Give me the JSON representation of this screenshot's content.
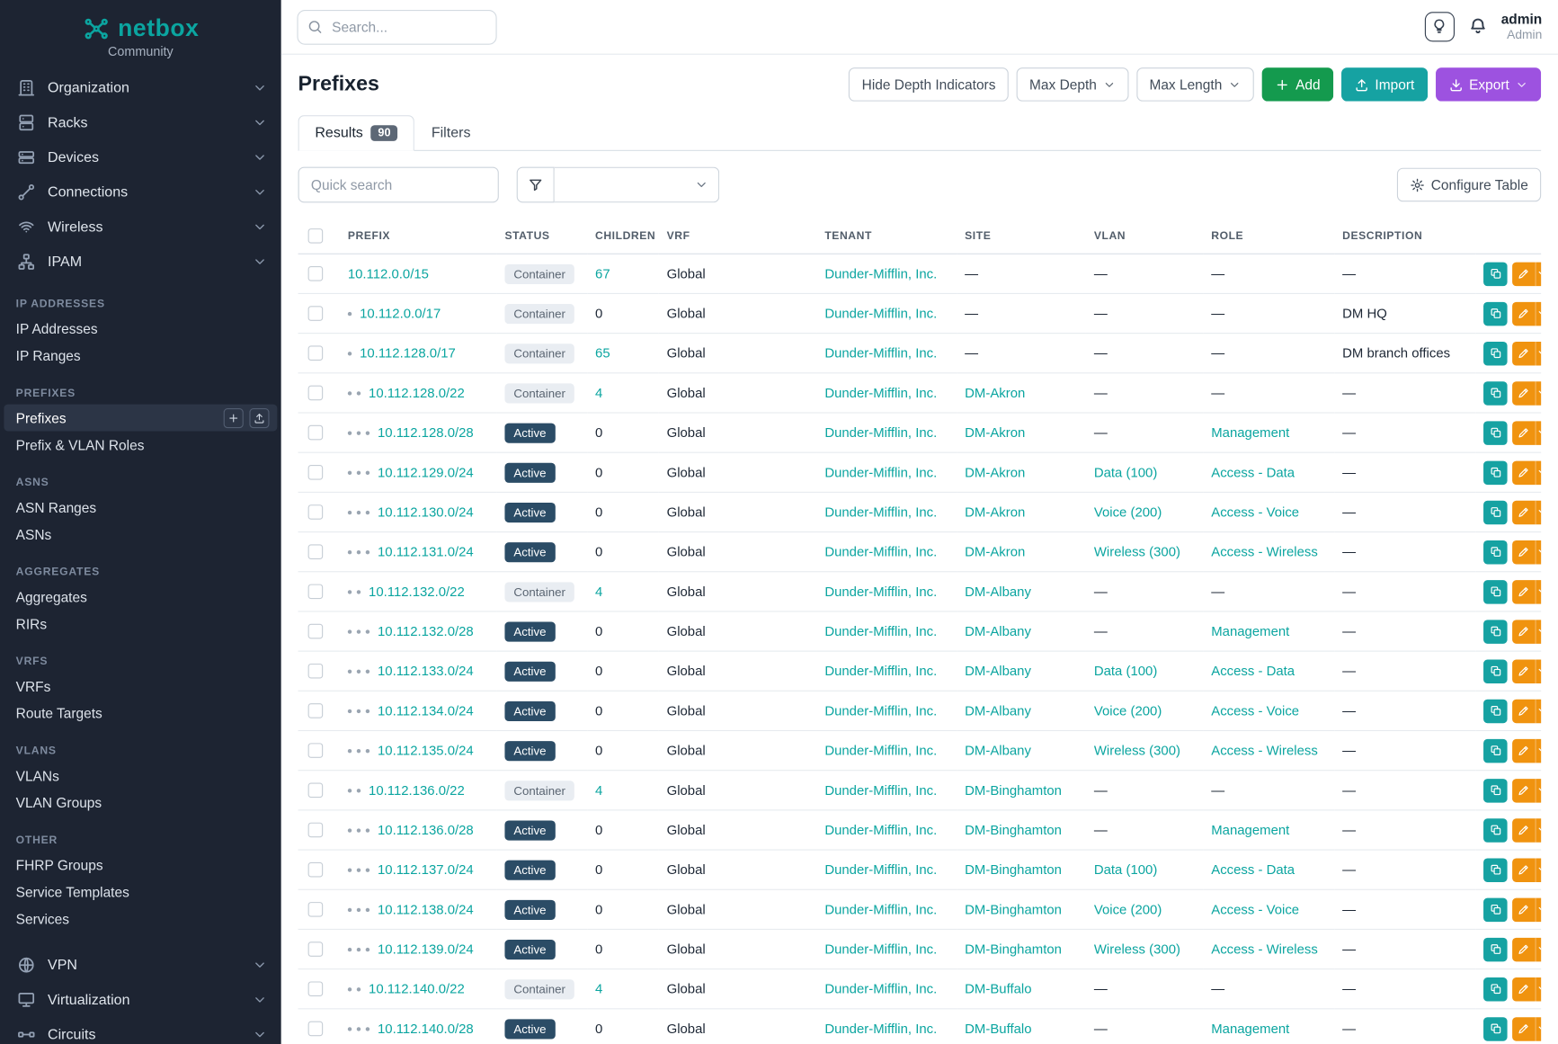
{
  "colors": {
    "accent": "#0ba5a0",
    "sidebar_bg": "#1d2432",
    "sidebar_active_bg": "#2c3546",
    "add_green": "#149a4e",
    "import_teal": "#16a2a2",
    "export_purple": "#9d52e0",
    "edit_orange": "#f0930f",
    "active_badge": "#2b4c66",
    "container_badge_bg": "#e9edf2"
  },
  "brand": {
    "name": "netbox",
    "edition": "Community"
  },
  "topbar": {
    "search_placeholder": "Search...",
    "username": "admin",
    "user_role": "Admin"
  },
  "sidebar": {
    "nav_top": [
      {
        "label": "Organization",
        "icon": "building-icon"
      },
      {
        "label": "Racks",
        "icon": "rack-icon"
      },
      {
        "label": "Devices",
        "icon": "devices-icon"
      },
      {
        "label": "Connections",
        "icon": "connections-icon"
      },
      {
        "label": "Wireless",
        "icon": "wifi-icon"
      },
      {
        "label": "IPAM",
        "icon": "ipam-icon"
      }
    ],
    "ipam_sections": [
      {
        "title": "IP ADDRESSES",
        "items": [
          {
            "label": "IP Addresses"
          },
          {
            "label": "IP Ranges"
          }
        ]
      },
      {
        "title": "PREFIXES",
        "items": [
          {
            "label": "Prefixes",
            "active": true,
            "buttons": [
              "plus",
              "import"
            ]
          },
          {
            "label": "Prefix & VLAN Roles"
          }
        ]
      },
      {
        "title": "ASNS",
        "items": [
          {
            "label": "ASN Ranges"
          },
          {
            "label": "ASNs"
          }
        ]
      },
      {
        "title": "AGGREGATES",
        "items": [
          {
            "label": "Aggregates"
          },
          {
            "label": "RIRs"
          }
        ]
      },
      {
        "title": "VRFS",
        "items": [
          {
            "label": "VRFs"
          },
          {
            "label": "Route Targets"
          }
        ]
      },
      {
        "title": "VLANS",
        "items": [
          {
            "label": "VLANs"
          },
          {
            "label": "VLAN Groups"
          }
        ]
      },
      {
        "title": "OTHER",
        "items": [
          {
            "label": "FHRP Groups"
          },
          {
            "label": "Service Templates"
          },
          {
            "label": "Services"
          }
        ]
      }
    ],
    "nav_bottom": [
      {
        "label": "VPN",
        "icon": "vpn-icon"
      },
      {
        "label": "Virtualization",
        "icon": "virtualization-icon"
      },
      {
        "label": "Circuits",
        "icon": "circuits-icon"
      }
    ]
  },
  "page": {
    "title": "Prefixes",
    "toolbar": {
      "hide_depth": "Hide Depth Indicators",
      "max_depth": "Max Depth",
      "max_length": "Max Length",
      "add": "Add",
      "import": "Import",
      "export": "Export"
    },
    "tabs": [
      {
        "label": "Results",
        "count": "90",
        "active": true
      },
      {
        "label": "Filters",
        "active": false
      }
    ],
    "quick_search_placeholder": "Quick search",
    "configure_table": "Configure Table"
  },
  "table": {
    "columns": [
      "PREFIX",
      "STATUS",
      "CHILDREN",
      "VRF",
      "TENANT",
      "SITE",
      "VLAN",
      "ROLE",
      "DESCRIPTION"
    ],
    "rows": [
      {
        "prefix": "10.112.0.0/15",
        "depth": 0,
        "status": "Container",
        "children": "67",
        "vrf": "Global",
        "tenant": "Dunder-Mifflin, Inc.",
        "site": "—",
        "vlan": "—",
        "role": "—",
        "description": "—"
      },
      {
        "prefix": "10.112.0.0/17",
        "depth": 1,
        "status": "Container",
        "children": "0",
        "vrf": "Global",
        "tenant": "Dunder-Mifflin, Inc.",
        "site": "—",
        "vlan": "—",
        "role": "—",
        "description": "DM HQ"
      },
      {
        "prefix": "10.112.128.0/17",
        "depth": 1,
        "status": "Container",
        "children": "65",
        "vrf": "Global",
        "tenant": "Dunder-Mifflin, Inc.",
        "site": "—",
        "vlan": "—",
        "role": "—",
        "description": "DM branch offices"
      },
      {
        "prefix": "10.112.128.0/22",
        "depth": 2,
        "status": "Container",
        "children": "4",
        "vrf": "Global",
        "tenant": "Dunder-Mifflin, Inc.",
        "site": "DM-Akron",
        "vlan": "—",
        "role": "—",
        "description": "—"
      },
      {
        "prefix": "10.112.128.0/28",
        "depth": 3,
        "status": "Active",
        "children": "0",
        "vrf": "Global",
        "tenant": "Dunder-Mifflin, Inc.",
        "site": "DM-Akron",
        "vlan": "—",
        "role": "Management",
        "description": "—"
      },
      {
        "prefix": "10.112.129.0/24",
        "depth": 3,
        "status": "Active",
        "children": "0",
        "vrf": "Global",
        "tenant": "Dunder-Mifflin, Inc.",
        "site": "DM-Akron",
        "vlan": "Data (100)",
        "role": "Access - Data",
        "description": "—"
      },
      {
        "prefix": "10.112.130.0/24",
        "depth": 3,
        "status": "Active",
        "children": "0",
        "vrf": "Global",
        "tenant": "Dunder-Mifflin, Inc.",
        "site": "DM-Akron",
        "vlan": "Voice (200)",
        "role": "Access - Voice",
        "description": "—"
      },
      {
        "prefix": "10.112.131.0/24",
        "depth": 3,
        "status": "Active",
        "children": "0",
        "vrf": "Global",
        "tenant": "Dunder-Mifflin, Inc.",
        "site": "DM-Akron",
        "vlan": "Wireless (300)",
        "role": "Access - Wireless",
        "description": "—"
      },
      {
        "prefix": "10.112.132.0/22",
        "depth": 2,
        "status": "Container",
        "children": "4",
        "vrf": "Global",
        "tenant": "Dunder-Mifflin, Inc.",
        "site": "DM-Albany",
        "vlan": "—",
        "role": "—",
        "description": "—"
      },
      {
        "prefix": "10.112.132.0/28",
        "depth": 3,
        "status": "Active",
        "children": "0",
        "vrf": "Global",
        "tenant": "Dunder-Mifflin, Inc.",
        "site": "DM-Albany",
        "vlan": "—",
        "role": "Management",
        "description": "—"
      },
      {
        "prefix": "10.112.133.0/24",
        "depth": 3,
        "status": "Active",
        "children": "0",
        "vrf": "Global",
        "tenant": "Dunder-Mifflin, Inc.",
        "site": "DM-Albany",
        "vlan": "Data (100)",
        "role": "Access - Data",
        "description": "—"
      },
      {
        "prefix": "10.112.134.0/24",
        "depth": 3,
        "status": "Active",
        "children": "0",
        "vrf": "Global",
        "tenant": "Dunder-Mifflin, Inc.",
        "site": "DM-Albany",
        "vlan": "Voice (200)",
        "role": "Access - Voice",
        "description": "—"
      },
      {
        "prefix": "10.112.135.0/24",
        "depth": 3,
        "status": "Active",
        "children": "0",
        "vrf": "Global",
        "tenant": "Dunder-Mifflin, Inc.",
        "site": "DM-Albany",
        "vlan": "Wireless (300)",
        "role": "Access - Wireless",
        "description": "—"
      },
      {
        "prefix": "10.112.136.0/22",
        "depth": 2,
        "status": "Container",
        "children": "4",
        "vrf": "Global",
        "tenant": "Dunder-Mifflin, Inc.",
        "site": "DM-Binghamton",
        "vlan": "—",
        "role": "—",
        "description": "—"
      },
      {
        "prefix": "10.112.136.0/28",
        "depth": 3,
        "status": "Active",
        "children": "0",
        "vrf": "Global",
        "tenant": "Dunder-Mifflin, Inc.",
        "site": "DM-Binghamton",
        "vlan": "—",
        "role": "Management",
        "description": "—"
      },
      {
        "prefix": "10.112.137.0/24",
        "depth": 3,
        "status": "Active",
        "children": "0",
        "vrf": "Global",
        "tenant": "Dunder-Mifflin, Inc.",
        "site": "DM-Binghamton",
        "vlan": "Data (100)",
        "role": "Access - Data",
        "description": "—"
      },
      {
        "prefix": "10.112.138.0/24",
        "depth": 3,
        "status": "Active",
        "children": "0",
        "vrf": "Global",
        "tenant": "Dunder-Mifflin, Inc.",
        "site": "DM-Binghamton",
        "vlan": "Voice (200)",
        "role": "Access - Voice",
        "description": "—"
      },
      {
        "prefix": "10.112.139.0/24",
        "depth": 3,
        "status": "Active",
        "children": "0",
        "vrf": "Global",
        "tenant": "Dunder-Mifflin, Inc.",
        "site": "DM-Binghamton",
        "vlan": "Wireless (300)",
        "role": "Access - Wireless",
        "description": "—"
      },
      {
        "prefix": "10.112.140.0/22",
        "depth": 2,
        "status": "Container",
        "children": "4",
        "vrf": "Global",
        "tenant": "Dunder-Mifflin, Inc.",
        "site": "DM-Buffalo",
        "vlan": "—",
        "role": "—",
        "description": "—"
      },
      {
        "prefix": "10.112.140.0/28",
        "depth": 3,
        "status": "Active",
        "children": "0",
        "vrf": "Global",
        "tenant": "Dunder-Mifflin, Inc.",
        "site": "DM-Buffalo",
        "vlan": "—",
        "role": "Management",
        "description": "—"
      }
    ]
  }
}
